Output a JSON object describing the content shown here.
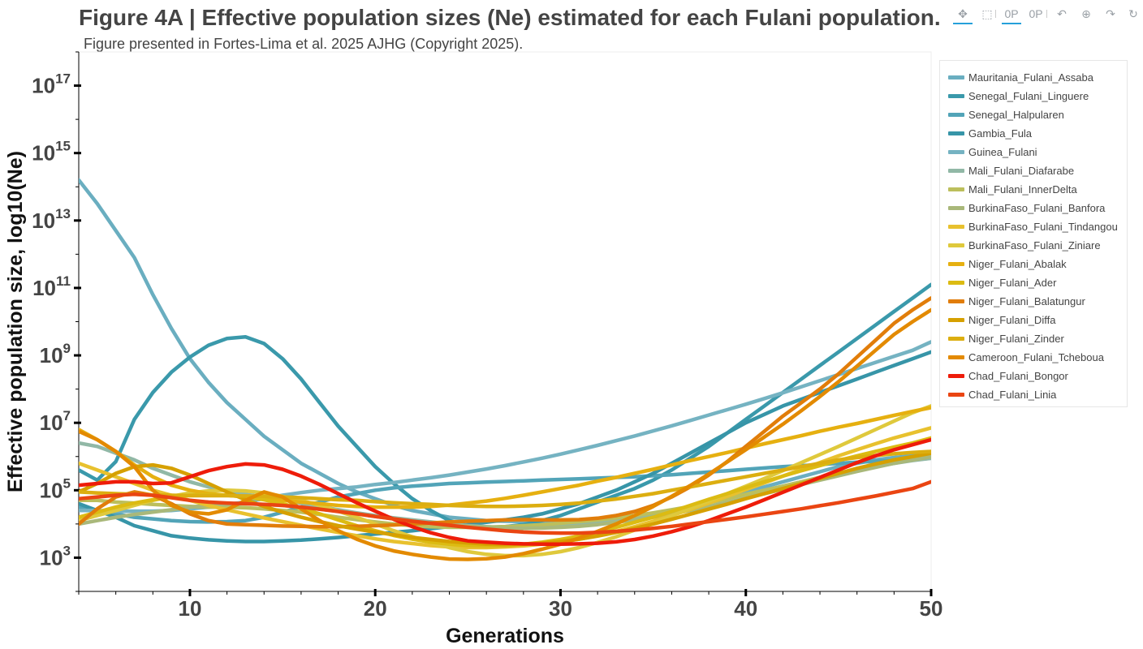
{
  "title": "Figure 4A | Effective population sizes (Ne) estimated for each Fulani population.",
  "subtitle": "Figure presented in Fortes-Lima et al. 2025 AJHG (Copyright 2025).",
  "toolbar": {
    "tools": [
      {
        "name": "pan-tool",
        "icon": "pan-icon",
        "glyph": "✥",
        "active": true
      },
      {
        "name": "box-zoom-tool",
        "icon": "box-zoom-icon",
        "glyph": "⬚",
        "active": false
      },
      {
        "name": "wheel-zoom-x-tool",
        "icon": "wheel-zoom-icon",
        "glyph": "0P",
        "active": true
      },
      {
        "name": "wheel-zoom-y-tool",
        "icon": "wheel-zoom-icon",
        "glyph": "0P",
        "active": false
      },
      {
        "name": "undo-tool",
        "icon": "undo-icon",
        "glyph": "↶",
        "active": false
      },
      {
        "name": "zoom-in-tool",
        "icon": "zoom-in-icon",
        "glyph": "⊕",
        "active": false
      },
      {
        "name": "redo-tool",
        "icon": "redo-icon",
        "glyph": "↷",
        "active": false
      },
      {
        "name": "reset-tool",
        "icon": "reset-icon",
        "glyph": "↻",
        "active": false
      }
    ]
  },
  "chart_data": {
    "type": "line",
    "title": "Figure 4A | Effective population sizes (Ne) estimated for each Fulani population.",
    "subtitle": "Figure presented in Fortes-Lima et al. 2025 AJHG (Copyright 2025).",
    "xlabel": "Generations",
    "ylabel": "Effective population size, log10(Ne)",
    "xlim": [
      4,
      50
    ],
    "ylim": [
      2,
      18
    ],
    "y_scale": "log10",
    "x_ticks": [
      10,
      20,
      30,
      40,
      50
    ],
    "y_ticks": [
      3,
      5,
      7,
      9,
      11,
      13,
      15,
      17
    ],
    "y_tick_base": "10",
    "legend_position": "right",
    "grid": false,
    "x": [
      4,
      5,
      6,
      7,
      8,
      9,
      10,
      11,
      12,
      13,
      14,
      15,
      16,
      17,
      18,
      19,
      20,
      21,
      22,
      23,
      24,
      25,
      26,
      27,
      28,
      29,
      30,
      31,
      32,
      33,
      34,
      35,
      36,
      37,
      38,
      39,
      40,
      41,
      42,
      43,
      44,
      45,
      46,
      47,
      48,
      49,
      50
    ],
    "series": [
      {
        "name": "Mauritania_Fulani_Assaba",
        "color": "#6aaec0",
        "values": [
          14.2,
          13.5,
          12.7,
          11.9,
          10.8,
          9.8,
          8.9,
          8.2,
          7.6,
          7.1,
          6.6,
          6.2,
          5.8,
          5.5,
          5.2,
          4.95,
          4.75,
          4.55,
          4.4,
          4.3,
          4.2,
          4.15,
          4.1,
          4.08,
          4.07,
          4.07,
          4.08,
          4.1,
          4.12,
          4.15,
          4.2,
          4.28,
          4.38,
          4.5,
          4.65,
          4.8,
          4.95,
          5.1,
          5.25,
          5.4,
          5.55,
          5.7,
          5.8,
          5.9,
          5.97,
          6.02,
          6.05
        ]
      },
      {
        "name": "Senegal_Fulani_Linguere",
        "color": "#3a99ab",
        "values": [
          5.6,
          5.3,
          5.85,
          7.1,
          7.9,
          8.5,
          8.95,
          9.3,
          9.5,
          9.55,
          9.35,
          8.9,
          8.3,
          7.6,
          6.9,
          6.3,
          5.7,
          5.2,
          4.75,
          4.4,
          4.1,
          3.95,
          3.9,
          3.92,
          3.98,
          4.1,
          4.25,
          4.45,
          4.65,
          4.85,
          5.05,
          5.3,
          5.6,
          5.95,
          6.3,
          6.7,
          7.1,
          7.5,
          7.9,
          8.3,
          8.7,
          9.1,
          9.5,
          9.9,
          10.3,
          10.7,
          11.1
        ]
      },
      {
        "name": "Senegal_Halpularen",
        "color": "#52a4b8",
        "values": [
          4.5,
          4.4,
          4.3,
          4.2,
          4.15,
          4.1,
          4.07,
          4.06,
          4.07,
          4.1,
          4.2,
          4.35,
          4.5,
          4.65,
          4.8,
          4.9,
          5.0,
          5.07,
          5.12,
          5.16,
          5.2,
          5.22,
          5.24,
          5.26,
          5.28,
          5.3,
          5.32,
          5.34,
          5.36,
          5.38,
          5.4,
          5.43,
          5.46,
          5.5,
          5.54,
          5.58,
          5.62,
          5.66,
          5.7,
          5.73,
          5.76,
          5.8,
          5.83,
          5.86,
          5.88,
          5.9,
          5.95
        ]
      },
      {
        "name": "Gambia_Fula",
        "color": "#3795a8",
        "values": [
          4.6,
          4.4,
          4.2,
          3.95,
          3.8,
          3.65,
          3.58,
          3.53,
          3.5,
          3.48,
          3.48,
          3.5,
          3.52,
          3.56,
          3.6,
          3.65,
          3.7,
          3.75,
          3.8,
          3.86,
          3.92,
          3.98,
          4.05,
          4.12,
          4.2,
          4.3,
          4.45,
          4.6,
          4.8,
          5.0,
          5.25,
          5.5,
          5.8,
          6.1,
          6.4,
          6.7,
          7.0,
          7.25,
          7.5,
          7.7,
          7.9,
          8.1,
          8.3,
          8.5,
          8.7,
          8.9,
          9.1
        ]
      },
      {
        "name": "Guinea_Fulani",
        "color": "#75b3c2",
        "values": [
          4.4,
          4.4,
          4.38,
          4.38,
          4.38,
          4.4,
          4.45,
          4.5,
          4.58,
          4.65,
          4.75,
          4.85,
          4.93,
          5.0,
          5.05,
          5.1,
          5.17,
          5.23,
          5.3,
          5.37,
          5.45,
          5.54,
          5.63,
          5.73,
          5.84,
          5.95,
          6.07,
          6.2,
          6.33,
          6.47,
          6.61,
          6.76,
          6.91,
          7.07,
          7.23,
          7.39,
          7.55,
          7.72,
          7.89,
          8.07,
          8.25,
          8.43,
          8.61,
          8.79,
          8.97,
          9.15,
          9.4
        ]
      },
      {
        "name": "Mali_Fulani_Diafarabe",
        "color": "#91b8a6",
        "values": [
          6.4,
          6.3,
          6.1,
          5.9,
          5.65,
          5.45,
          5.25,
          5.1,
          4.98,
          4.88,
          4.8,
          4.72,
          4.62,
          4.52,
          4.42,
          4.33,
          4.25,
          4.18,
          4.12,
          4.06,
          4.0,
          3.95,
          3.92,
          3.9,
          3.9,
          3.92,
          3.95,
          4.0,
          4.05,
          4.12,
          4.2,
          4.28,
          4.38,
          4.5,
          4.63,
          4.75,
          4.88,
          5.0,
          5.12,
          5.25,
          5.38,
          5.5,
          5.6,
          5.7,
          5.8,
          5.88,
          5.95
        ]
      },
      {
        "name": "Mali_Fulani_InnerDelta",
        "color": "#bcbf5c",
        "values": [
          4.7,
          4.7,
          4.65,
          4.62,
          4.58,
          4.55,
          4.52,
          4.5,
          4.5,
          4.48,
          4.45,
          4.4,
          4.35,
          4.28,
          4.2,
          4.13,
          4.06,
          4.0,
          3.95,
          3.92,
          3.9,
          3.9,
          3.9,
          3.92,
          3.95,
          3.98,
          4.02,
          4.07,
          4.12,
          4.18,
          4.25,
          4.33,
          4.42,
          4.52,
          4.63,
          4.75,
          4.88,
          5.0,
          5.12,
          5.25,
          5.38,
          5.5,
          5.62,
          5.72,
          5.82,
          5.9,
          6.0
        ]
      },
      {
        "name": "BurkinaFaso_Fulani_Banfora",
        "color": "#a9b87a",
        "values": [
          4.0,
          4.1,
          4.2,
          4.28,
          4.35,
          4.42,
          4.5,
          4.55,
          4.58,
          4.6,
          4.58,
          4.55,
          4.5,
          4.44,
          4.38,
          4.3,
          4.22,
          4.15,
          4.08,
          4.02,
          3.97,
          3.93,
          3.9,
          3.88,
          3.87,
          3.88,
          3.9,
          3.93,
          3.98,
          4.05,
          4.12,
          4.2,
          4.3,
          4.4,
          4.52,
          4.64,
          4.77,
          4.9,
          5.03,
          5.17,
          5.3,
          5.43,
          5.56,
          5.68,
          5.8,
          5.9,
          6.0
        ]
      },
      {
        "name": "BurkinaFaso_Fulani_Tindangou",
        "color": "#e8c12e",
        "values": [
          5.8,
          5.6,
          5.4,
          5.2,
          5.0,
          4.85,
          4.7,
          4.55,
          4.42,
          4.3,
          4.18,
          4.07,
          3.96,
          3.85,
          3.75,
          3.65,
          3.56,
          3.48,
          3.42,
          3.36,
          3.32,
          3.3,
          3.3,
          3.32,
          3.35,
          3.4,
          3.46,
          3.55,
          3.65,
          3.78,
          3.92,
          4.08,
          4.25,
          4.43,
          4.62,
          4.82,
          5.02,
          5.22,
          5.42,
          5.62,
          5.82,
          6.02,
          6.2,
          6.38,
          6.55,
          6.7,
          6.85
        ]
      },
      {
        "name": "BurkinaFaso_Fulani_Ziniare",
        "color": "#dfc93c",
        "values": [
          4.1,
          4.25,
          4.4,
          4.55,
          4.7,
          4.82,
          4.92,
          4.98,
          5.0,
          4.98,
          4.92,
          4.82,
          4.7,
          4.55,
          4.38,
          4.2,
          4.0,
          3.8,
          3.62,
          3.45,
          3.3,
          3.18,
          3.1,
          3.06,
          3.06,
          3.1,
          3.18,
          3.3,
          3.45,
          3.62,
          3.82,
          4.02,
          4.24,
          4.46,
          4.68,
          4.9,
          5.12,
          5.35,
          5.58,
          5.82,
          6.06,
          6.3,
          6.55,
          6.8,
          7.05,
          7.3,
          7.5
        ]
      },
      {
        "name": "Niger_Fulani_Abalak",
        "color": "#e6b010",
        "values": [
          6.8,
          6.5,
          6.15,
          5.75,
          5.4,
          5.15,
          5.0,
          4.9,
          4.85,
          4.8,
          4.75,
          4.7,
          4.65,
          4.6,
          4.55,
          4.52,
          4.5,
          4.5,
          4.5,
          4.52,
          4.56,
          4.62,
          4.68,
          4.76,
          4.85,
          4.95,
          5.05,
          5.15,
          5.27,
          5.38,
          5.5,
          5.62,
          5.75,
          5.88,
          6.0,
          6.12,
          6.25,
          6.38,
          6.5,
          6.62,
          6.75,
          6.87,
          6.98,
          7.1,
          7.22,
          7.34,
          7.45
        ]
      },
      {
        "name": "Niger_Fulani_Ader",
        "color": "#dcbb12",
        "values": [
          4.2,
          4.35,
          4.5,
          4.62,
          4.72,
          4.8,
          4.85,
          4.87,
          4.85,
          4.8,
          4.72,
          4.6,
          4.46,
          4.3,
          4.12,
          3.95,
          3.8,
          3.66,
          3.55,
          3.46,
          3.4,
          3.36,
          3.35,
          3.36,
          3.4,
          3.46,
          3.54,
          3.64,
          3.76,
          3.9,
          4.05,
          4.2,
          4.37,
          4.55,
          4.73,
          4.9,
          5.08,
          5.25,
          5.42,
          5.58,
          5.73,
          5.88,
          6.02,
          6.15,
          6.28,
          6.4,
          6.55
        ]
      },
      {
        "name": "Niger_Fulani_Balatungur",
        "color": "#e17d0a",
        "values": [
          4.0,
          4.45,
          4.8,
          4.95,
          4.85,
          4.6,
          4.3,
          4.1,
          4.0,
          3.98,
          3.96,
          3.94,
          3.93,
          3.92,
          3.92,
          3.93,
          3.95,
          3.97,
          4.0,
          4.03,
          4.06,
          4.08,
          4.1,
          4.12,
          4.13,
          4.12,
          4.12,
          4.13,
          4.17,
          4.25,
          4.37,
          4.55,
          4.8,
          5.1,
          5.45,
          5.85,
          6.3,
          6.75,
          7.2,
          7.6,
          8.0,
          8.45,
          8.95,
          9.45,
          9.95,
          10.35,
          10.7
        ]
      },
      {
        "name": "Niger_Fulani_Diffa",
        "color": "#d6a000",
        "values": [
          4.95,
          5.2,
          5.5,
          5.7,
          5.75,
          5.65,
          5.45,
          5.2,
          4.95,
          4.72,
          4.52,
          4.35,
          4.2,
          4.07,
          3.95,
          3.85,
          3.76,
          3.68,
          3.6,
          3.54,
          3.48,
          3.44,
          3.4,
          3.39,
          3.4,
          3.43,
          3.48,
          3.55,
          3.64,
          3.75,
          3.87,
          4.0,
          4.14,
          4.29,
          4.44,
          4.59,
          4.75,
          4.9,
          5.05,
          5.2,
          5.35,
          5.5,
          5.65,
          5.78,
          5.9,
          6.0,
          6.1
        ]
      },
      {
        "name": "Niger_Fulani_Zinder",
        "color": "#dcae10",
        "values": [
          4.95,
          4.92,
          4.9,
          4.88,
          4.86,
          4.85,
          4.84,
          4.84,
          4.84,
          4.83,
          4.82,
          4.8,
          4.78,
          4.75,
          4.72,
          4.7,
          4.66,
          4.63,
          4.6,
          4.58,
          4.55,
          4.53,
          4.52,
          4.52,
          4.53,
          4.55,
          4.58,
          4.62,
          4.68,
          4.74,
          4.82,
          4.9,
          5.0,
          5.1,
          5.2,
          5.3,
          5.4,
          5.5,
          5.6,
          5.7,
          5.8,
          5.9,
          5.97,
          6.03,
          6.08,
          6.12,
          6.15
        ]
      },
      {
        "name": "Cameroon_Fulani_Tcheboua",
        "color": "#e38a00",
        "values": [
          6.75,
          6.5,
          6.15,
          5.7,
          5.0,
          4.55,
          4.35,
          4.3,
          4.42,
          4.7,
          4.95,
          4.8,
          4.45,
          4.1,
          3.8,
          3.55,
          3.35,
          3.2,
          3.1,
          3.02,
          2.96,
          2.95,
          2.97,
          3.02,
          3.12,
          3.25,
          3.4,
          3.58,
          3.78,
          4.0,
          4.25,
          4.52,
          4.82,
          5.14,
          5.48,
          5.84,
          6.2,
          6.58,
          6.96,
          7.36,
          7.78,
          8.22,
          8.68,
          9.15,
          9.62,
          10.0,
          10.35
        ]
      },
      {
        "name": "Chad_Fulani_Bongor",
        "color": "#ee1c0a",
        "values": [
          5.15,
          5.2,
          5.25,
          5.25,
          5.2,
          5.22,
          5.4,
          5.58,
          5.7,
          5.78,
          5.75,
          5.62,
          5.42,
          5.17,
          4.9,
          4.63,
          4.38,
          4.14,
          3.92,
          3.74,
          3.6,
          3.5,
          3.46,
          3.43,
          3.41,
          3.4,
          3.4,
          3.41,
          3.43,
          3.47,
          3.54,
          3.64,
          3.77,
          3.92,
          4.1,
          4.3,
          4.5,
          4.72,
          4.94,
          5.16,
          5.38,
          5.6,
          5.82,
          6.02,
          6.2,
          6.35,
          6.5
        ]
      },
      {
        "name": "Chad_Fulani_Linia",
        "color": "#ea4512",
        "values": [
          4.75,
          4.8,
          4.85,
          4.88,
          4.85,
          4.78,
          4.7,
          4.65,
          4.62,
          4.6,
          4.58,
          4.55,
          4.5,
          4.44,
          4.37,
          4.3,
          4.22,
          4.15,
          4.08,
          4.02,
          3.96,
          3.9,
          3.85,
          3.8,
          3.76,
          3.74,
          3.73,
          3.73,
          3.75,
          3.78,
          3.82,
          3.87,
          3.93,
          4.0,
          4.07,
          4.14,
          4.21,
          4.29,
          4.37,
          4.45,
          4.54,
          4.63,
          4.73,
          4.83,
          4.94,
          5.05,
          5.25
        ]
      }
    ]
  }
}
